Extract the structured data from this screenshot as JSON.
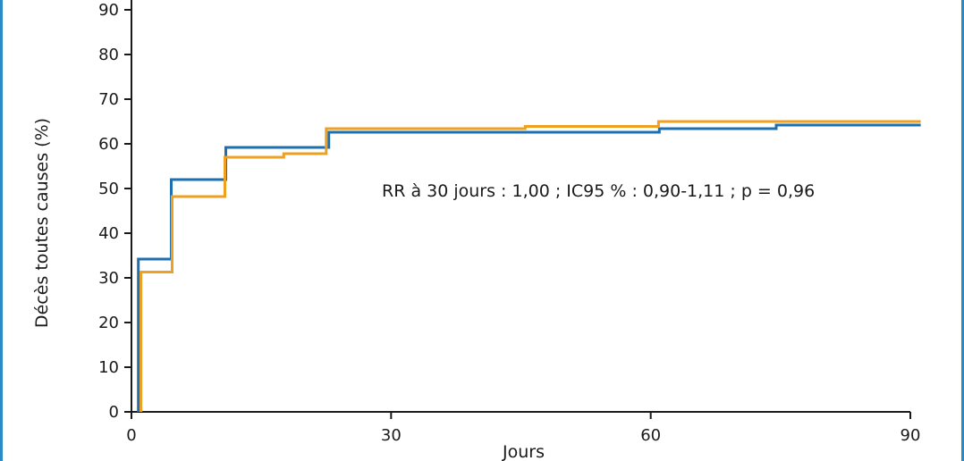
{
  "chart_data": {
    "type": "line",
    "step": true,
    "xlabel": "Jours",
    "ylabel": "Décès toutes causes (%)",
    "xlim": [
      0,
      90
    ],
    "ylim": [
      0,
      90
    ],
    "x_ticks": [
      0,
      30,
      60,
      90
    ],
    "y_ticks": [
      0,
      10,
      20,
      30,
      40,
      50,
      60,
      70,
      80,
      90
    ],
    "annotation": "RR à 30 jours : 1,00 ; IC95 % : 0,90-1,11 ; p = 0,96",
    "series": [
      {
        "color": "#1e6fb0",
        "points": [
          [
            0.8,
            0
          ],
          [
            0.8,
            34.2
          ],
          [
            4.6,
            34.2
          ],
          [
            4.6,
            52
          ],
          [
            10.9,
            52
          ],
          [
            10.9,
            59.2
          ],
          [
            22.8,
            59.2
          ],
          [
            22.8,
            62.6
          ],
          [
            61,
            62.6
          ],
          [
            61,
            63.4
          ],
          [
            74.5,
            63.4
          ],
          [
            74.5,
            64.2
          ],
          [
            91.2,
            64.2
          ]
        ]
      },
      {
        "color": "#f0a020",
        "points": [
          [
            1.1,
            0
          ],
          [
            1.1,
            31.3
          ],
          [
            4.7,
            31.3
          ],
          [
            4.7,
            48.2
          ],
          [
            10.8,
            48.2
          ],
          [
            10.8,
            57
          ],
          [
            17.6,
            57
          ],
          [
            17.6,
            57.8
          ],
          [
            22.5,
            57.8
          ],
          [
            22.5,
            63.4
          ],
          [
            45.5,
            63.4
          ],
          [
            45.5,
            63.9
          ],
          [
            60.9,
            63.9
          ],
          [
            60.9,
            65
          ],
          [
            91.2,
            65
          ]
        ]
      }
    ]
  }
}
